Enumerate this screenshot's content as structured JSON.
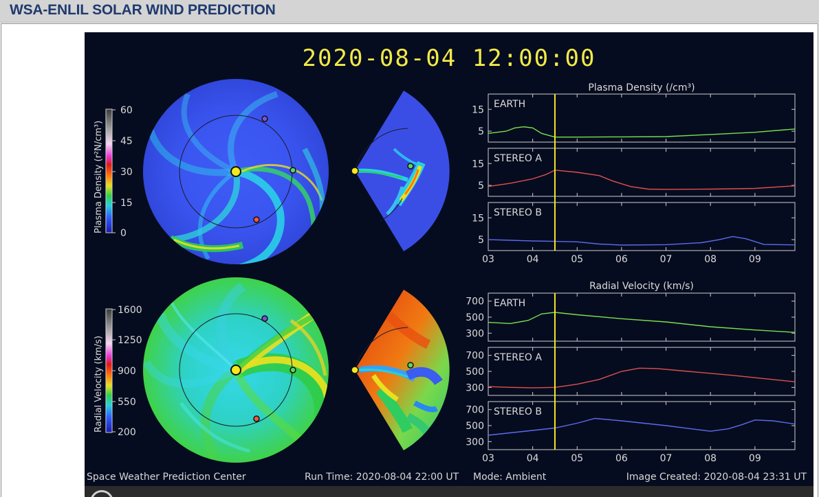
{
  "page": {
    "title": "WSA-ENLIL SOLAR WIND PREDICTION"
  },
  "viewer": {
    "timestamp": "2020-08-04  12:00:00",
    "footer": {
      "organization": "Space Weather Prediction Center",
      "run_time": "Run Time: 2020-08-04 22:00 UT",
      "mode": "Mode: Ambient",
      "image_created": "Image Created: 2020-08-04 23:31 UT"
    },
    "colorbars": {
      "density": {
        "label": "Plasma Density (r²N/cm³)",
        "ticks": [
          "60",
          "45",
          "30",
          "15",
          "0"
        ]
      },
      "velocity": {
        "label": "Radial Velocity (km/s)",
        "ticks": [
          "1600",
          "1250",
          "900",
          "550",
          "200"
        ]
      }
    },
    "controls": {
      "play_icon": "play-circle-icon"
    }
  },
  "chart_data": [
    {
      "type": "line",
      "title": "Plasma Density (/cm³)",
      "x_ticks": [
        "03",
        "04",
        "05",
        "06",
        "07",
        "08",
        "09"
      ],
      "x_range": [
        3.0,
        9.9
      ],
      "current_time": 4.5,
      "panels": [
        {
          "name": "EARTH",
          "color": "#7be04e",
          "ylim": [
            0,
            22
          ],
          "y_ticks": [
            "15",
            "5"
          ],
          "x": [
            3.0,
            3.4,
            3.6,
            3.8,
            4.0,
            4.2,
            4.5,
            5.0,
            6.0,
            7.0,
            8.0,
            9.0,
            9.9
          ],
          "y": [
            4.0,
            5.0,
            6.5,
            7.0,
            6.5,
            4.0,
            2.3,
            2.3,
            2.4,
            2.5,
            3.5,
            4.5,
            6.0
          ]
        },
        {
          "name": "STEREO A",
          "color": "#e05050",
          "ylim": [
            0,
            22
          ],
          "y_ticks": [
            "15",
            "5"
          ],
          "x": [
            3.0,
            3.5,
            4.0,
            4.3,
            4.5,
            5.0,
            5.5,
            5.8,
            6.2,
            6.6,
            7.0,
            8.0,
            9.0,
            9.9
          ],
          "y": [
            4.5,
            6.0,
            8.0,
            10.0,
            12.0,
            11.0,
            9.5,
            7.0,
            4.5,
            3.3,
            3.2,
            3.3,
            3.6,
            4.8
          ]
        },
        {
          "name": "STEREO B",
          "color": "#5b6cf0",
          "ylim": [
            0,
            22
          ],
          "y_ticks": [
            "15",
            "5"
          ],
          "x": [
            3.0,
            3.5,
            4.0,
            4.5,
            5.0,
            5.5,
            6.0,
            7.0,
            7.8,
            8.2,
            8.5,
            8.8,
            9.2,
            9.9
          ],
          "y": [
            5.0,
            4.7,
            4.4,
            4.2,
            4.0,
            3.0,
            2.5,
            2.7,
            3.6,
            5.0,
            6.4,
            5.4,
            2.8,
            2.6
          ]
        }
      ]
    },
    {
      "type": "line",
      "title": "Radial Velocity (km/s)",
      "x_ticks": [
        "03",
        "04",
        "05",
        "06",
        "07",
        "08",
        "09"
      ],
      "x_range": [
        3.0,
        9.9
      ],
      "current_time": 4.5,
      "panels": [
        {
          "name": "EARTH",
          "color": "#7be04e",
          "ylim": [
            200,
            800
          ],
          "y_ticks": [
            "700",
            "500",
            "300"
          ],
          "x": [
            3.0,
            3.5,
            3.9,
            4.2,
            4.5,
            5.0,
            6.0,
            7.0,
            8.0,
            9.0,
            9.9
          ],
          "y": [
            435,
            420,
            460,
            540,
            560,
            530,
            480,
            440,
            380,
            340,
            310
          ]
        },
        {
          "name": "STEREO A",
          "color": "#e05050",
          "ylim": [
            200,
            800
          ],
          "y_ticks": [
            "700",
            "500",
            "300"
          ],
          "x": [
            3.0,
            3.5,
            4.0,
            4.5,
            5.0,
            5.5,
            6.0,
            6.4,
            6.8,
            7.5,
            8.5,
            9.9
          ],
          "y": [
            310,
            300,
            295,
            300,
            340,
            400,
            500,
            540,
            535,
            500,
            450,
            370
          ]
        },
        {
          "name": "STEREO B",
          "color": "#5b6cf0",
          "ylim": [
            200,
            800
          ],
          "y_ticks": [
            "700",
            "500",
            "300"
          ],
          "x": [
            3.0,
            3.5,
            4.0,
            4.5,
            5.0,
            5.4,
            6.0,
            7.0,
            8.0,
            8.4,
            8.7,
            9.0,
            9.4,
            9.9
          ],
          "y": [
            380,
            410,
            440,
            470,
            530,
            590,
            560,
            500,
            430,
            460,
            510,
            570,
            560,
            520
          ]
        }
      ]
    }
  ]
}
